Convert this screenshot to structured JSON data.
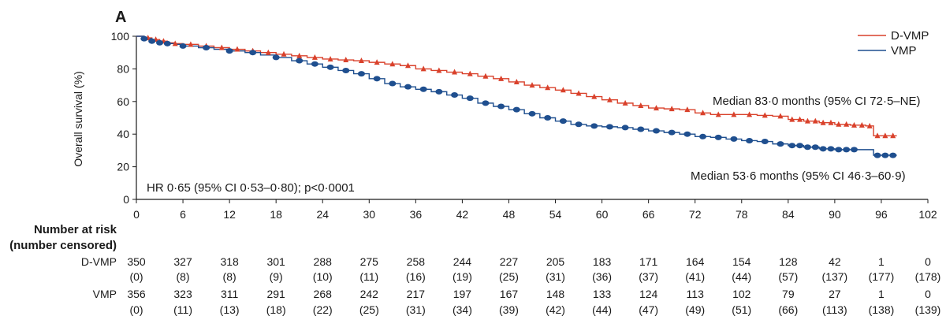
{
  "chart_data": {
    "type": "line",
    "panel_label": "A",
    "ylabel": "Overall survival (%)",
    "xlabel": "",
    "xlim": [
      0,
      102
    ],
    "ylim": [
      0,
      100
    ],
    "xticks": [
      0,
      6,
      12,
      18,
      24,
      30,
      36,
      42,
      48,
      54,
      60,
      66,
      72,
      78,
      84,
      90,
      96,
      102
    ],
    "yticks": [
      0,
      20,
      40,
      60,
      80,
      100
    ],
    "legend_position": "top-right",
    "series": [
      {
        "name": "D-VMP",
        "color": "#d9412b",
        "marker": "triangle",
        "x": [
          0,
          1,
          2,
          3,
          4,
          5,
          6,
          8,
          10,
          12,
          14,
          16,
          18,
          20,
          22,
          24,
          26,
          28,
          30,
          32,
          34,
          36,
          38,
          40,
          42,
          44,
          46,
          48,
          50,
          52,
          54,
          56,
          58,
          60,
          62,
          64,
          66,
          68,
          70,
          72,
          74,
          76,
          78,
          80,
          82,
          84,
          86,
          88,
          90,
          92,
          94,
          95,
          96,
          98
        ],
        "y": [
          100,
          99,
          98,
          97,
          96,
          95.5,
          95,
          94,
          93,
          92,
          91,
          90,
          89,
          88,
          87,
          86,
          85.5,
          85,
          84,
          83,
          82,
          80,
          79,
          78,
          77,
          75.5,
          74,
          72,
          70,
          68.5,
          67,
          65,
          63,
          61,
          59,
          57.5,
          56,
          55.5,
          55,
          53,
          52,
          52,
          52,
          51.5,
          51,
          49,
          48,
          47,
          46,
          45.5,
          45,
          39,
          39,
          39
        ],
        "censor_x": [
          1.5,
          2.5,
          3.5,
          5,
          7,
          9,
          11,
          13,
          15,
          17,
          19,
          21,
          23,
          25,
          27,
          29,
          31,
          33,
          35,
          37,
          39,
          41,
          43,
          45,
          47,
          49,
          51,
          53,
          55,
          57,
          59,
          61,
          63,
          65,
          67,
          69,
          71,
          73,
          75,
          77,
          79,
          81,
          83,
          84.5,
          85.5,
          86.5,
          87.5,
          88.5,
          89.5,
          90.5,
          91.5,
          92.5,
          93.5,
          94.5,
          95.5,
          96.5,
          97.5
        ]
      },
      {
        "name": "VMP",
        "color": "#1f4f8f",
        "marker": "circle",
        "x": [
          0,
          1,
          2,
          3,
          4,
          5,
          6,
          8,
          10,
          12,
          14,
          16,
          18,
          20,
          22,
          24,
          26,
          28,
          30,
          32,
          34,
          36,
          38,
          40,
          42,
          44,
          46,
          48,
          50,
          52,
          54,
          56,
          58,
          60,
          62,
          64,
          66,
          68,
          70,
          72,
          74,
          76,
          78,
          80,
          82,
          84,
          86,
          88,
          90,
          92,
          94,
          95,
          96,
          98
        ],
        "y": [
          100,
          98.5,
          97,
          96,
          95.5,
          95,
          94,
          93,
          92,
          91,
          90,
          88.5,
          87,
          85,
          83,
          81,
          79,
          77,
          74,
          71,
          69,
          67.5,
          66,
          64,
          62,
          59,
          57,
          55,
          52.5,
          50,
          48,
          46,
          45,
          44.5,
          44,
          43,
          42,
          41,
          40,
          38.5,
          38,
          37,
          36,
          35.5,
          34,
          33,
          32,
          31,
          30.5,
          30.5,
          30.5,
          27,
          27,
          27
        ],
        "censor_x": [
          1,
          2,
          3,
          4,
          6,
          9,
          12,
          15,
          18,
          21,
          23,
          25,
          27,
          29,
          31,
          33,
          35,
          37,
          39,
          41,
          43,
          45,
          47,
          49,
          51,
          53,
          55,
          57,
          59,
          61,
          63,
          65,
          67,
          69,
          71,
          73,
          75,
          77,
          79,
          81,
          83,
          84.5,
          85.5,
          86.5,
          87.5,
          88.5,
          89.5,
          90.5,
          91.5,
          92.5,
          95.5,
          96.5,
          97.5
        ]
      }
    ],
    "annotations": {
      "dvmp_median": "Median 83·0 months (95% CI 72·5–NE)",
      "vmp_median": "Median 53·6 months (95% CI 46·3–60·9)",
      "hr": "HR 0·65 (95% CI 0·53–0·80); p<0·0001"
    },
    "risk_table": {
      "heading_line1": "Number at risk",
      "heading_line2": "(number censored)",
      "rows": [
        {
          "label": "D-VMP",
          "at_risk": [
            "350",
            "327",
            "318",
            "301",
            "288",
            "275",
            "258",
            "244",
            "227",
            "205",
            "183",
            "171",
            "164",
            "154",
            "128",
            "42",
            "1",
            "0"
          ],
          "censored": [
            "(0)",
            "(8)",
            "(8)",
            "(9)",
            "(10)",
            "(11)",
            "(16)",
            "(19)",
            "(25)",
            "(31)",
            "(36)",
            "(37)",
            "(41)",
            "(44)",
            "(57)",
            "(137)",
            "(177)",
            "(178)"
          ]
        },
        {
          "label": "VMP",
          "at_risk": [
            "356",
            "323",
            "311",
            "291",
            "268",
            "242",
            "217",
            "197",
            "167",
            "148",
            "133",
            "124",
            "113",
            "102",
            "79",
            "27",
            "1",
            "0"
          ],
          "censored": [
            "(0)",
            "(11)",
            "(13)",
            "(18)",
            "(22)",
            "(25)",
            "(31)",
            "(34)",
            "(39)",
            "(42)",
            "(44)",
            "(47)",
            "(49)",
            "(51)",
            "(66)",
            "(113)",
            "(138)",
            "(139)"
          ]
        }
      ]
    }
  }
}
